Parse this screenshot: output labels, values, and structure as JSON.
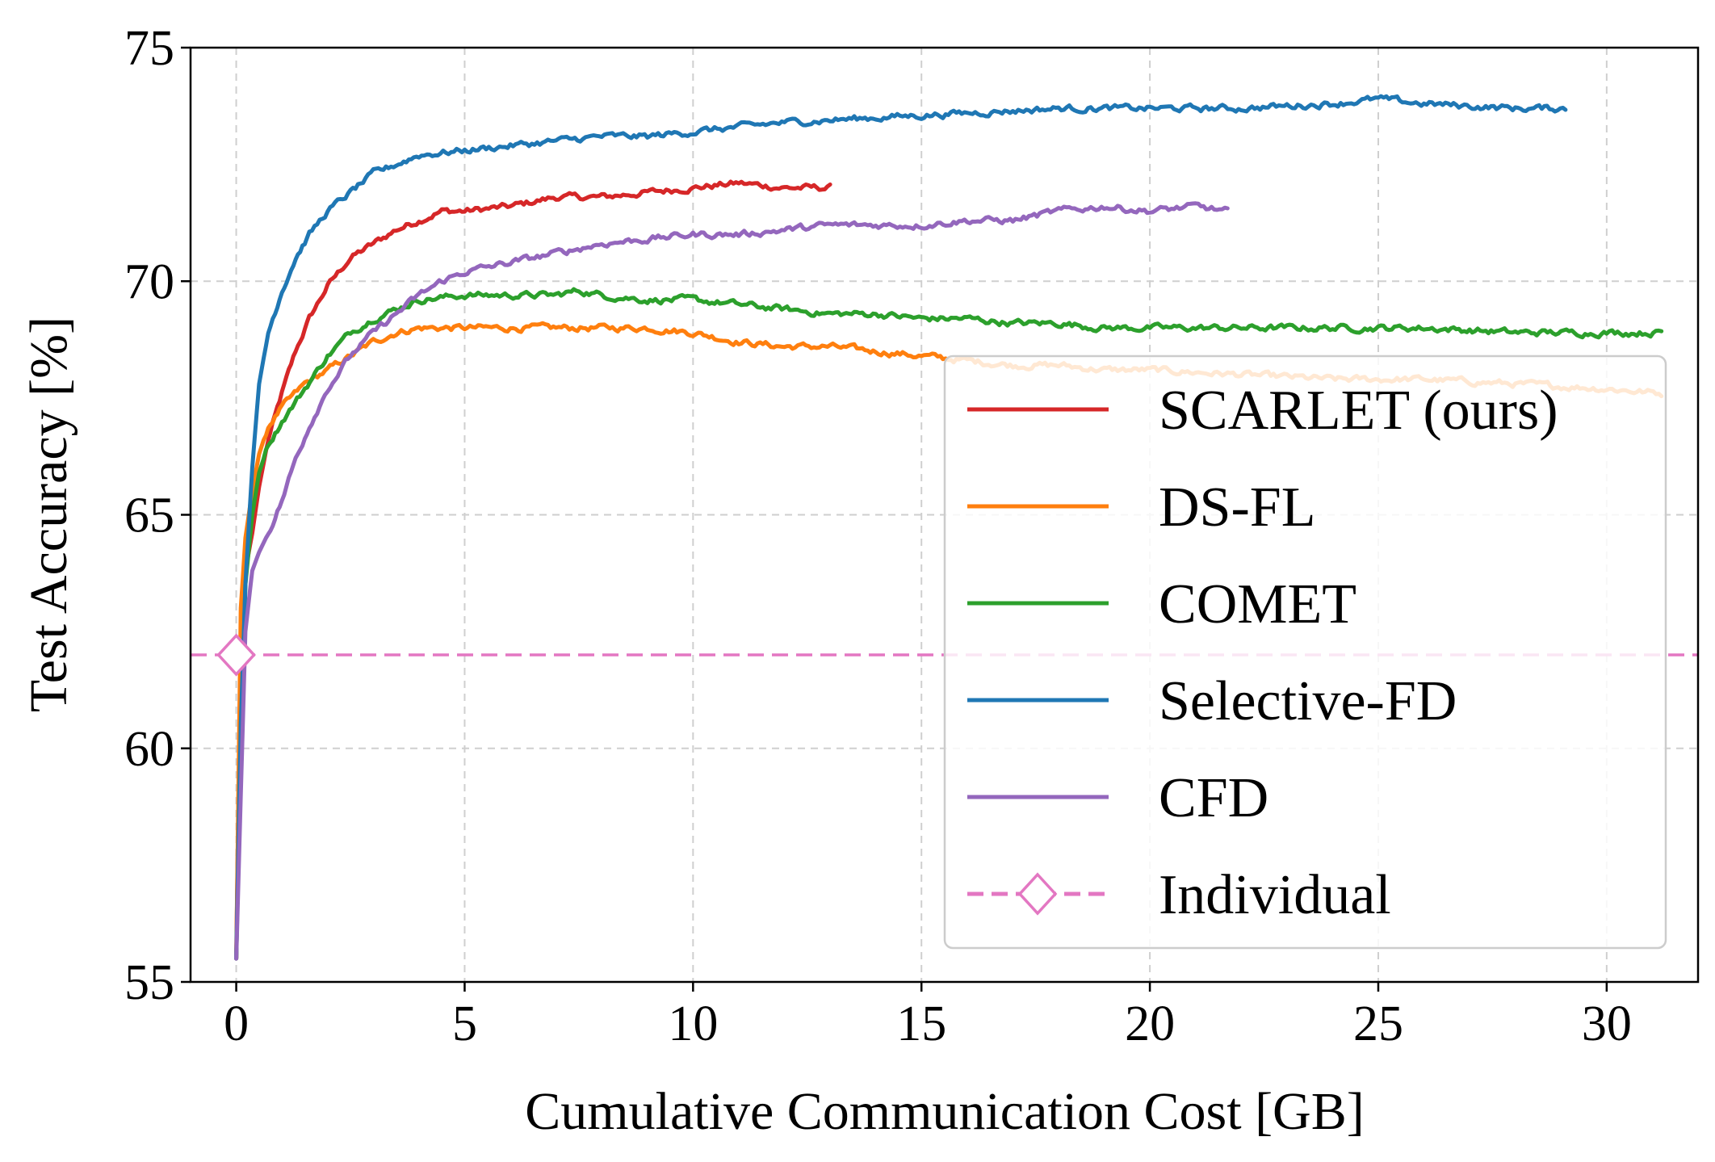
{
  "chart_data": {
    "type": "line",
    "xlabel": "Cumulative Communication Cost [GB]",
    "ylabel": "Test Accuracy [%]",
    "xlim": [
      -1,
      32
    ],
    "ylim": [
      55,
      75
    ],
    "xticks": [
      0,
      5,
      10,
      15,
      20,
      25,
      30
    ],
    "yticks": [
      55,
      60,
      65,
      70,
      75
    ],
    "grid": true,
    "legend_position": "lower-right",
    "series": [
      {
        "name": "SCARLET (ours)",
        "color": "#d62728",
        "style": "solid",
        "x": [
          0,
          0.1,
          0.2,
          0.35,
          0.5,
          0.7,
          1.0,
          1.3,
          1.6,
          2.0,
          2.5,
          3.0,
          3.5,
          4.0,
          4.5,
          5.0,
          6.0,
          7.0,
          8.0,
          9.0,
          10.0,
          11.0,
          12.0,
          13.0
        ],
        "y": [
          55.5,
          62.5,
          63.8,
          64.6,
          65.6,
          66.6,
          67.6,
          68.5,
          69.2,
          69.9,
          70.5,
          70.8,
          71.1,
          71.3,
          71.5,
          71.5,
          71.6,
          71.8,
          71.8,
          71.9,
          72.0,
          72.1,
          72.0,
          72.0
        ]
      },
      {
        "name": "DS-FL",
        "color": "#ff7f0e",
        "style": "solid",
        "x": [
          0,
          0.1,
          0.2,
          0.35,
          0.5,
          0.7,
          1.0,
          1.5,
          2.0,
          2.5,
          3.0,
          3.5,
          4.0,
          5.0,
          6.0,
          7.0,
          8.0,
          9.0,
          10.0,
          11.0,
          12.0,
          13.0,
          14.0,
          15.0,
          16.0,
          17.0,
          18.0,
          19.0,
          20.0,
          22.0,
          24.0,
          26.0,
          28.0,
          30.0,
          31.2
        ],
        "y": [
          55.5,
          63.0,
          64.5,
          65.5,
          66.3,
          66.9,
          67.3,
          67.8,
          68.1,
          68.4,
          68.7,
          68.9,
          69.0,
          69.0,
          69.0,
          69.0,
          69.0,
          69.0,
          68.9,
          68.7,
          68.6,
          68.6,
          68.5,
          68.4,
          68.3,
          68.2,
          68.2,
          68.1,
          68.1,
          68.0,
          67.9,
          67.9,
          67.8,
          67.7,
          67.6
        ]
      },
      {
        "name": "COMET",
        "color": "#2ca02c",
        "style": "solid",
        "x": [
          0,
          0.1,
          0.2,
          0.35,
          0.5,
          0.7,
          1.0,
          1.5,
          2.0,
          2.5,
          3.0,
          3.5,
          4.0,
          5.0,
          6.0,
          7.0,
          7.5,
          8.0,
          9.0,
          10.0,
          11.0,
          12.0,
          13.0,
          14.0,
          15.0,
          16.0,
          17.0,
          18.0,
          19.0,
          20.0,
          22.0,
          24.0,
          26.0,
          28.0,
          30.0,
          31.2
        ],
        "y": [
          55.5,
          60.0,
          63.5,
          65.0,
          65.9,
          66.5,
          67.0,
          67.7,
          68.4,
          68.9,
          69.2,
          69.4,
          69.6,
          69.7,
          69.7,
          69.7,
          69.8,
          69.7,
          69.6,
          69.6,
          69.5,
          69.4,
          69.3,
          69.3,
          69.2,
          69.2,
          69.1,
          69.1,
          69.0,
          69.0,
          69.0,
          69.0,
          69.0,
          68.9,
          68.9,
          68.9
        ]
      },
      {
        "name": "Selective-FD",
        "color": "#1f77b4",
        "style": "solid",
        "x": [
          0,
          0.1,
          0.2,
          0.35,
          0.5,
          0.7,
          1.0,
          1.3,
          1.6,
          2.0,
          2.5,
          3.0,
          3.5,
          4.0,
          5.0,
          6.0,
          7.0,
          8.0,
          9.0,
          10.0,
          12.0,
          14.0,
          16.0,
          18.0,
          20.0,
          22.0,
          24.0,
          25.0,
          26.0,
          28.0,
          29.1
        ],
        "y": [
          55.5,
          60.5,
          63.5,
          66.0,
          67.8,
          68.9,
          69.8,
          70.5,
          71.0,
          71.5,
          71.9,
          72.3,
          72.5,
          72.7,
          72.8,
          72.9,
          73.0,
          73.1,
          73.1,
          73.2,
          73.4,
          73.5,
          73.6,
          73.7,
          73.7,
          73.7,
          73.8,
          73.9,
          73.8,
          73.7,
          73.7
        ]
      },
      {
        "name": "CFD",
        "color": "#9467bd",
        "style": "solid",
        "x": [
          0,
          0.1,
          0.2,
          0.35,
          0.5,
          0.7,
          1.0,
          1.3,
          1.6,
          2.0,
          2.5,
          3.0,
          3.5,
          4.0,
          4.5,
          5.0,
          6.0,
          7.0,
          8.0,
          9.0,
          10.0,
          11.0,
          12.0,
          13.0,
          14.0,
          15.0,
          16.0,
          17.0,
          18.0,
          19.0,
          20.0,
          21.0,
          21.7
        ],
        "y": [
          55.5,
          59.0,
          62.5,
          63.8,
          64.2,
          64.6,
          65.3,
          66.2,
          66.9,
          67.7,
          68.4,
          68.9,
          69.3,
          69.7,
          70.0,
          70.2,
          70.4,
          70.6,
          70.8,
          70.9,
          71.0,
          71.0,
          71.1,
          71.2,
          71.2,
          71.2,
          71.3,
          71.3,
          71.5,
          71.6,
          71.5,
          71.6,
          71.5
        ]
      }
    ],
    "reference": {
      "name": "Individual",
      "color": "#e377c2",
      "style": "dashed",
      "marker": "open-diamond",
      "y": 62.0,
      "marker_x": 0
    }
  }
}
